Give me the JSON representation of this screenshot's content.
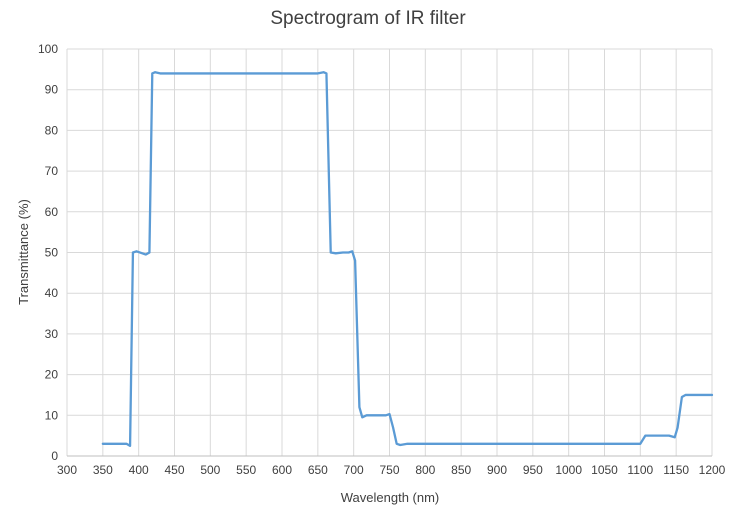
{
  "chart_data": {
    "type": "line",
    "title": "Spectrogram of IR filter",
    "xlabel": "Wavelength (nm)",
    "ylabel": "Transmittance (%)",
    "xlim": [
      300,
      1200
    ],
    "ylim": [
      0,
      100
    ],
    "x_ticks": [
      300,
      350,
      400,
      450,
      500,
      550,
      600,
      650,
      700,
      750,
      800,
      850,
      900,
      950,
      1000,
      1050,
      1100,
      1150,
      1200
    ],
    "y_ticks": [
      0,
      10,
      20,
      30,
      40,
      50,
      60,
      70,
      80,
      90,
      100
    ],
    "grid": true,
    "legend": "none",
    "series": [
      {
        "color": "#5b9bd5",
        "points": [
          [
            350,
            3
          ],
          [
            375,
            3
          ],
          [
            383,
            3
          ],
          [
            388,
            2.5
          ],
          [
            392,
            50
          ],
          [
            397,
            50.3
          ],
          [
            410,
            49.5
          ],
          [
            415,
            50
          ],
          [
            419,
            94
          ],
          [
            423,
            94.3
          ],
          [
            430,
            94
          ],
          [
            500,
            94
          ],
          [
            600,
            94
          ],
          [
            650,
            94
          ],
          [
            658,
            94.3
          ],
          [
            662,
            94
          ],
          [
            668,
            50
          ],
          [
            675,
            49.8
          ],
          [
            685,
            50
          ],
          [
            693,
            50
          ],
          [
            698,
            50.3
          ],
          [
            702,
            48
          ],
          [
            708,
            12
          ],
          [
            712,
            9.5
          ],
          [
            718,
            10
          ],
          [
            745,
            10
          ],
          [
            750,
            10.3
          ],
          [
            755,
            7
          ],
          [
            760,
            3
          ],
          [
            765,
            2.7
          ],
          [
            775,
            3
          ],
          [
            800,
            3
          ],
          [
            900,
            3
          ],
          [
            1000,
            3
          ],
          [
            1095,
            3
          ],
          [
            1100,
            3
          ],
          [
            1107,
            5
          ],
          [
            1115,
            5
          ],
          [
            1140,
            5
          ],
          [
            1148,
            4.6
          ],
          [
            1152,
            7
          ],
          [
            1158,
            14.5
          ],
          [
            1163,
            15
          ],
          [
            1170,
            15
          ],
          [
            1200,
            15
          ]
        ]
      }
    ]
  }
}
